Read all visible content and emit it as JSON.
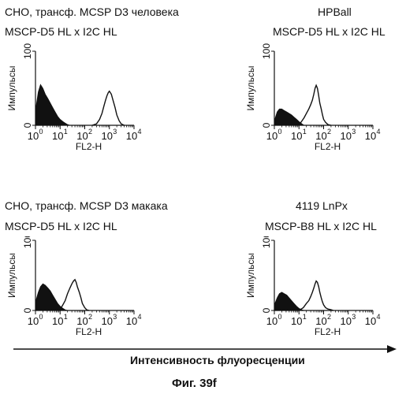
{
  "figure_caption": "Фиг. 39f",
  "xaxis_global_label": "Интенсивность флуоресценции",
  "panels": [
    {
      "title_line1": "CHO, трансф. MCSP D3 человека",
      "title_line2": "MSCP-D5 HL x I2C HL"
    },
    {
      "title_line1": "HPBall",
      "title_line2": "MSCP-D5 HL x I2C HL"
    },
    {
      "title_line1": "CHO, трансф. MCSP D3 макака",
      "title_line2": "MSCP-D5 HL x I2C HL"
    },
    {
      "title_line1": "4119 LnPx",
      "title_line2": "MSCP-B8 HL x I2C HL"
    }
  ],
  "chart_data": [
    {
      "type": "area",
      "xlabel": "FL2-H",
      "ylabel": "Импульсы",
      "xscale": "log",
      "xlim": [
        1,
        10000
      ],
      "ylim": [
        0,
        100
      ],
      "x_ticks": [
        "10",
        "10",
        "10",
        "10",
        "10"
      ],
      "x_tick_exp": [
        "0",
        "1",
        "2",
        "3",
        "4"
      ],
      "y_ticks": [
        "0",
        "100"
      ],
      "control": {
        "x": [
          1,
          1.3,
          1.6,
          2,
          2.5,
          3.2,
          4,
          5,
          6.3,
          8,
          10,
          13,
          16,
          20,
          25
        ],
        "y": [
          20,
          45,
          55,
          50,
          42,
          36,
          30,
          24,
          18,
          12,
          8,
          5,
          3,
          1,
          0
        ]
      },
      "stained": {
        "x": [
          200,
          300,
          400,
          500,
          600,
          700,
          800,
          900,
          1000,
          1200,
          1400,
          1700,
          2000,
          2500,
          3000,
          4000
        ],
        "y": [
          0,
          2,
          8,
          16,
          26,
          34,
          40,
          44,
          46,
          42,
          34,
          24,
          14,
          6,
          2,
          0
        ]
      }
    },
    {
      "type": "area",
      "xlabel": "FL2-H",
      "ylabel": "Импульсы",
      "xscale": "log",
      "xlim": [
        1,
        10000
      ],
      "ylim": [
        0,
        100
      ],
      "x_ticks": [
        "10",
        "10",
        "10",
        "10",
        "10"
      ],
      "x_tick_exp": [
        "0",
        "1",
        "2",
        "3",
        "4"
      ],
      "y_ticks": [
        "0",
        "100"
      ],
      "control": {
        "x": [
          1,
          1.3,
          1.6,
          2,
          2.5,
          3.2,
          4,
          5,
          6.3,
          8,
          10,
          13,
          16
        ],
        "y": [
          6,
          18,
          22,
          22,
          20,
          18,
          16,
          14,
          11,
          8,
          5,
          2,
          0
        ]
      },
      "stained": {
        "x": [
          8,
          12,
          16,
          20,
          25,
          30,
          35,
          40,
          45,
          50,
          56,
          63,
          70,
          80,
          90,
          100,
          120,
          150,
          200
        ],
        "y": [
          0,
          4,
          10,
          16,
          22,
          28,
          34,
          42,
          50,
          54,
          50,
          40,
          30,
          22,
          14,
          8,
          4,
          1,
          0
        ]
      }
    },
    {
      "type": "area",
      "xlabel": "FL2-H",
      "ylabel": "Импульсы",
      "xscale": "log",
      "xlim": [
        1,
        10000
      ],
      "ylim": [
        0,
        100
      ],
      "x_ticks": [
        "10",
        "10",
        "10",
        "10",
        "10"
      ],
      "x_tick_exp": [
        "0",
        "1",
        "2",
        "3",
        "4"
      ],
      "y_ticks": [
        "0",
        "100"
      ],
      "control": {
        "x": [
          1,
          1.3,
          1.6,
          2,
          2.5,
          3.2,
          4,
          5,
          6.3,
          8,
          10,
          13,
          16,
          20
        ],
        "y": [
          12,
          26,
          34,
          38,
          36,
          32,
          28,
          22,
          16,
          10,
          6,
          3,
          1,
          0
        ]
      },
      "stained": {
        "x": [
          8,
          12,
          16,
          20,
          25,
          30,
          35,
          40,
          45,
          50,
          60,
          70,
          80,
          100,
          120,
          150
        ],
        "y": [
          0,
          6,
          14,
          24,
          32,
          38,
          42,
          44,
          40,
          34,
          26,
          18,
          10,
          4,
          1,
          0
        ]
      }
    },
    {
      "type": "area",
      "xlabel": "FL2-H",
      "ylabel": "Импульсы",
      "xscale": "log",
      "xlim": [
        1,
        10000
      ],
      "ylim": [
        0,
        100
      ],
      "x_ticks": [
        "10",
        "10",
        "10",
        "10",
        "10"
      ],
      "x_tick_exp": [
        "0",
        "1",
        "2",
        "3",
        "4"
      ],
      "y_ticks": [
        "0",
        "100"
      ],
      "control": {
        "x": [
          1,
          1.3,
          1.6,
          2,
          2.5,
          3.2,
          4,
          5,
          6.3,
          8,
          10,
          13,
          16
        ],
        "y": [
          8,
          18,
          24,
          26,
          24,
          22,
          18,
          14,
          10,
          6,
          3,
          1,
          0
        ]
      },
      "stained": {
        "x": [
          10,
          15,
          20,
          25,
          30,
          35,
          40,
          45,
          50,
          56,
          63,
          70,
          80,
          90,
          100,
          120,
          150,
          200,
          250
        ],
        "y": [
          0,
          4,
          10,
          14,
          20,
          26,
          32,
          38,
          42,
          40,
          34,
          26,
          18,
          12,
          8,
          4,
          2,
          1,
          0
        ]
      }
    }
  ]
}
